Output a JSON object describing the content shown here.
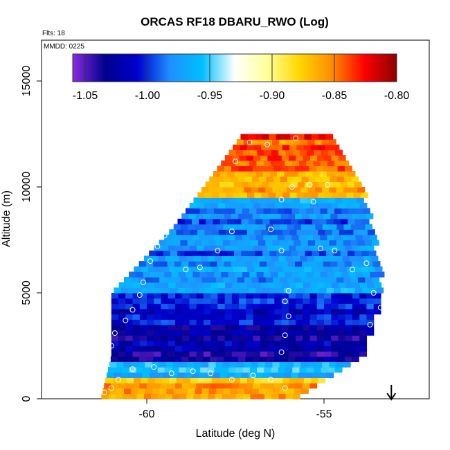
{
  "chart_data": {
    "type": "heatmap",
    "title": "ORCAS RF18 DBARU_RWO (Log)",
    "flights_note": "Flts: 18",
    "date_note": "MMDD: 0225",
    "xlabel": "Latitude (deg N)",
    "ylabel": "Altitude (m)",
    "xlim": [
      -63,
      -52.0
    ],
    "ylim": [
      0,
      17000
    ],
    "x_ticks": [
      -60,
      -55
    ],
    "x_tick_labels": [
      "-60",
      "-55"
    ],
    "y_ticks": [
      0,
      5000,
      10000,
      15000
    ],
    "y_tick_labels": [
      "0",
      "5000",
      "10000",
      "15000"
    ],
    "colorbar": {
      "min": -1.06,
      "max": -0.8,
      "ticks": [
        -1.05,
        -1.0,
        -0.95,
        -0.9,
        -0.85,
        -0.8
      ],
      "tick_labels": [
        "-1.05",
        "-1.00",
        "-0.95",
        "-0.90",
        "-0.85",
        "-0.80"
      ],
      "colors": [
        "#8a2be2",
        "#00008b",
        "#0000cd",
        "#1e90ff",
        "#00bfff",
        "#ffffff",
        "#ffff99",
        "#ffd700",
        "#ff8c00",
        "#ff0000",
        "#8b0000"
      ]
    },
    "marker_latitude": -53.1,
    "grid_bin_lat": 0.2,
    "grid_bin_alt": 250,
    "profile_layers": [
      {
        "alt_range": [
          0,
          1000
        ],
        "value": -0.86
      },
      {
        "alt_range": [
          1000,
          1600
        ],
        "value": -0.96
      },
      {
        "alt_range": [
          1600,
          3500
        ],
        "value": -1.03
      },
      {
        "alt_range": [
          3500,
          5000
        ],
        "value": -1.01
      },
      {
        "alt_range": [
          5000,
          9500
        ],
        "value": -0.98
      },
      {
        "alt_range": [
          9500,
          12500
        ],
        "value": -0.85
      }
    ],
    "envelope": [
      {
        "alt": 0,
        "lat_min": -61.3,
        "lat_max": -56.0
      },
      {
        "alt": 2000,
        "lat_min": -61.0,
        "lat_max": -54.0
      },
      {
        "alt": 5000,
        "lat_min": -61.0,
        "lat_max": -53.4
      },
      {
        "alt": 8000,
        "lat_min": -59.3,
        "lat_max": -53.7
      },
      {
        "alt": 10000,
        "lat_min": -58.4,
        "lat_max": -54.0
      },
      {
        "alt": 12500,
        "lat_min": -57.3,
        "lat_max": -54.8
      }
    ],
    "samples": [
      {
        "lat": -61.2,
        "alt": 300
      },
      {
        "lat": -61.0,
        "alt": 500
      },
      {
        "lat": -60.8,
        "alt": 900
      },
      {
        "lat": -60.4,
        "alt": 1400
      },
      {
        "lat": -59.8,
        "alt": 1500
      },
      {
        "lat": -59.3,
        "alt": 1200
      },
      {
        "lat": -58.7,
        "alt": 1300
      },
      {
        "lat": -58.2,
        "alt": 1200
      },
      {
        "lat": -57.6,
        "alt": 900
      },
      {
        "lat": -57.0,
        "alt": 1100
      },
      {
        "lat": -56.5,
        "alt": 900
      },
      {
        "lat": -56.1,
        "alt": 500
      },
      {
        "lat": -61.0,
        "alt": 2500
      },
      {
        "lat": -60.9,
        "alt": 3100
      },
      {
        "lat": -60.6,
        "alt": 3700
      },
      {
        "lat": -60.4,
        "alt": 4200
      },
      {
        "lat": -60.2,
        "alt": 4900
      },
      {
        "lat": -60.1,
        "alt": 5500
      },
      {
        "lat": -59.9,
        "alt": 6500
      },
      {
        "lat": -59.7,
        "alt": 7200
      },
      {
        "lat": -59.5,
        "alt": 7700
      },
      {
        "lat": -58.9,
        "alt": 6100
      },
      {
        "lat": -58.5,
        "alt": 6200
      },
      {
        "lat": -58.0,
        "alt": 7000
      },
      {
        "lat": -57.6,
        "alt": 7900
      },
      {
        "lat": -56.5,
        "alt": 8000
      },
      {
        "lat": -56.2,
        "alt": 7000
      },
      {
        "lat": -56.0,
        "alt": 5100
      },
      {
        "lat": -56.1,
        "alt": 4600
      },
      {
        "lat": -56.0,
        "alt": 3900
      },
      {
        "lat": -56.1,
        "alt": 3000
      },
      {
        "lat": -56.2,
        "alt": 2200
      },
      {
        "lat": -55.1,
        "alt": 7100
      },
      {
        "lat": -54.7,
        "alt": 7000
      },
      {
        "lat": -54.2,
        "alt": 6100
      },
      {
        "lat": -53.6,
        "alt": 5000
      },
      {
        "lat": -53.4,
        "alt": 4300
      },
      {
        "lat": -53.7,
        "alt": 3500
      },
      {
        "lat": -54.9,
        "alt": 10100
      },
      {
        "lat": -55.4,
        "alt": 10100
      },
      {
        "lat": -55.9,
        "alt": 10000
      },
      {
        "lat": -56.2,
        "alt": 9400
      },
      {
        "lat": -55.3,
        "alt": 9300
      },
      {
        "lat": -56.6,
        "alt": 12000
      },
      {
        "lat": -57.1,
        "alt": 12100
      },
      {
        "lat": -55.8,
        "alt": 12300
      },
      {
        "lat": -57.5,
        "alt": 11200
      },
      {
        "lat": -53.8,
        "alt": 6400
      }
    ]
  }
}
